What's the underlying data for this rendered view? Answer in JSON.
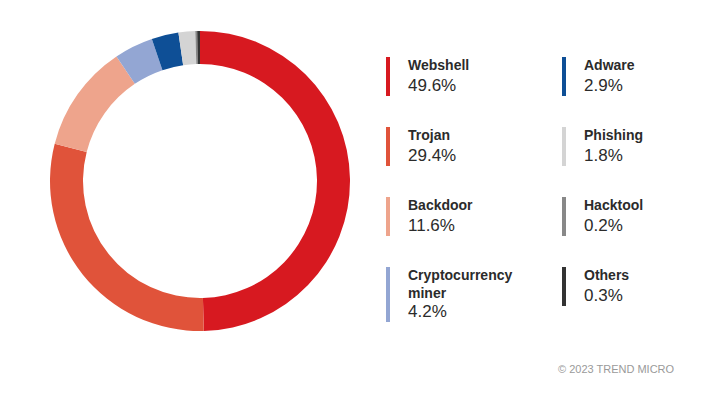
{
  "chart_data": {
    "type": "pie",
    "categories": [
      "Webshell",
      "Trojan",
      "Backdoor",
      "Cryptocurrency miner",
      "Adware",
      "Phishing",
      "Hacktool",
      "Others"
    ],
    "values": [
      49.6,
      29.4,
      11.6,
      4.2,
      2.9,
      1.8,
      0.2,
      0.3
    ],
    "value_labels": [
      "49.6%",
      "29.4%",
      "11.6%",
      "4.2%",
      "2.9%",
      "1.8%",
      "0.2%",
      "0.3%"
    ],
    "colors": [
      "#d71920",
      "#e0533a",
      "#eea48c",
      "#93a6d3",
      "#0e4f96",
      "#d4d4d4",
      "#888888",
      "#333333"
    ],
    "legend": "right",
    "data_labels": false,
    "annotations": [
      "© 2023 TREND MICRO"
    ]
  }
}
